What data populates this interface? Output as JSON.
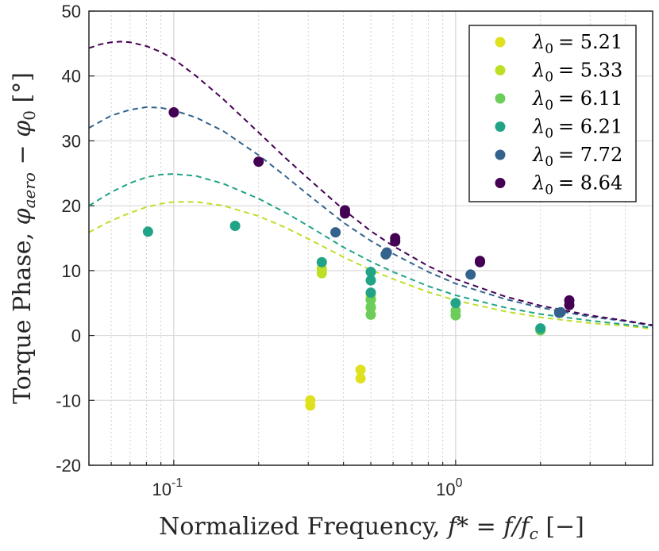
{
  "chart_data": {
    "type": "scatter",
    "xscale": "log",
    "xlim": [
      0.05,
      5
    ],
    "ylim": [
      -20,
      50
    ],
    "yticks": [
      50,
      40,
      30,
      20,
      10,
      0,
      -10,
      -20
    ],
    "ytick_labels": [
      "50",
      "40",
      "30",
      "20",
      "10",
      "0",
      "-10",
      "-20"
    ],
    "xticks": [
      {
        "value": 0.1,
        "base": "10",
        "exp": "-1"
      },
      {
        "value": 1,
        "base": "10",
        "exp": "0"
      }
    ],
    "xlabel": "Normalized Frequency, f* = f/f_c [−]",
    "xlabel_parts": {
      "prefix": "Normalized Frequency, ",
      "math": "f* = f/f",
      "sub": "c",
      "suffix": " [−]"
    },
    "ylabel": "Torque Phase, φ_aero − φ_0 [°]",
    "ylabel_parts": {
      "prefix": "Torque Phase, ",
      "phi1": "φ",
      "sub1": "aero",
      "minus": " − ",
      "phi2": "φ",
      "sub2": "0",
      "suffix": " [°]"
    },
    "grid": true,
    "legend_position": "top-right",
    "series": [
      {
        "name": "λ0 = 5.21",
        "symbol": "λ",
        "sub": "0",
        "value": "= 5.21",
        "color": "#dfe11f",
        "points": [
          [
            0.305,
            -10.8
          ],
          [
            0.305,
            -10.0
          ],
          [
            0.46,
            -6.6
          ],
          [
            0.46,
            -5.3
          ]
        ]
      },
      {
        "name": "λ0 = 5.33",
        "symbol": "λ",
        "sub": "0",
        "value": "= 5.33",
        "color": "#bddf26",
        "points": [
          [
            0.335,
            9.6
          ],
          [
            0.335,
            10.3
          ],
          [
            0.5,
            4.2
          ],
          [
            0.5,
            5.8
          ],
          [
            0.5,
            6.3
          ],
          [
            2.0,
            0.9
          ]
        ],
        "curve": [
          [
            0.05,
            15.9
          ],
          [
            0.06,
            17.7
          ],
          [
            0.07,
            18.9
          ],
          [
            0.08,
            19.8
          ],
          [
            0.09,
            20.3
          ],
          [
            0.1,
            20.6
          ],
          [
            0.12,
            20.6
          ],
          [
            0.15,
            20.0
          ],
          [
            0.2,
            18.4
          ],
          [
            0.25,
            16.6
          ],
          [
            0.3,
            14.9
          ],
          [
            0.4,
            12.1
          ],
          [
            0.5,
            10.1
          ],
          [
            0.6,
            8.7
          ],
          [
            0.8,
            6.7
          ],
          [
            1.0,
            5.4
          ],
          [
            1.5,
            3.7
          ],
          [
            2.0,
            2.8
          ],
          [
            3.0,
            1.9
          ],
          [
            4.0,
            1.5
          ],
          [
            5.0,
            1.0
          ]
        ]
      },
      {
        "name": "λ0 = 6.11",
        "symbol": "λ",
        "sub": "0",
        "value": "= 6.11",
        "color": "#6ccd5a",
        "points": [
          [
            0.5,
            3.2
          ],
          [
            0.5,
            4.4
          ],
          [
            0.5,
            5.5
          ],
          [
            1.0,
            3.1
          ],
          [
            1.0,
            3.8
          ],
          [
            2.0,
            0.8
          ]
        ]
      },
      {
        "name": "λ0 = 6.21",
        "symbol": "λ",
        "sub": "0",
        "value": "= 6.21",
        "color": "#20a386",
        "points": [
          [
            0.081,
            16.0
          ],
          [
            0.165,
            16.9
          ],
          [
            0.335,
            11.3
          ],
          [
            0.5,
            6.6
          ],
          [
            0.5,
            8.5
          ],
          [
            0.5,
            9.8
          ],
          [
            1.0,
            5.0
          ],
          [
            2.0,
            1.1
          ]
        ],
        "curve": [
          [
            0.05,
            20.0
          ],
          [
            0.06,
            22.1
          ],
          [
            0.07,
            23.5
          ],
          [
            0.08,
            24.4
          ],
          [
            0.09,
            24.8
          ],
          [
            0.1,
            24.9
          ],
          [
            0.12,
            24.6
          ],
          [
            0.15,
            23.4
          ],
          [
            0.2,
            21.1
          ],
          [
            0.25,
            18.9
          ],
          [
            0.3,
            16.9
          ],
          [
            0.4,
            13.6
          ],
          [
            0.5,
            11.4
          ],
          [
            0.6,
            9.8
          ],
          [
            0.8,
            7.6
          ],
          [
            1.0,
            6.2
          ],
          [
            1.5,
            4.3
          ],
          [
            2.0,
            3.3
          ],
          [
            3.0,
            2.3
          ],
          [
            4.0,
            1.7
          ],
          [
            5.0,
            1.2
          ]
        ]
      },
      {
        "name": "λ0 = 7.72",
        "symbol": "λ",
        "sub": "0",
        "value": "= 7.72",
        "color": "#33638d",
        "points": [
          [
            0.375,
            15.9
          ],
          [
            0.565,
            12.5
          ],
          [
            0.57,
            12.8
          ],
          [
            1.13,
            9.4
          ],
          [
            2.33,
            3.5
          ],
          [
            2.36,
            3.6
          ]
        ],
        "curve": [
          [
            0.05,
            32.0
          ],
          [
            0.06,
            33.9
          ],
          [
            0.07,
            34.8
          ],
          [
            0.08,
            35.2
          ],
          [
            0.09,
            35.1
          ],
          [
            0.1,
            34.7
          ],
          [
            0.12,
            33.6
          ],
          [
            0.15,
            31.5
          ],
          [
            0.2,
            27.8
          ],
          [
            0.25,
            24.5
          ],
          [
            0.3,
            21.7
          ],
          [
            0.4,
            17.4
          ],
          [
            0.5,
            14.6
          ],
          [
            0.6,
            12.6
          ],
          [
            0.8,
            9.8
          ],
          [
            1.0,
            8.0
          ],
          [
            1.5,
            5.6
          ],
          [
            2.0,
            4.3
          ],
          [
            3.0,
            2.9
          ],
          [
            4.0,
            2.2
          ],
          [
            5.0,
            1.5
          ]
        ]
      },
      {
        "name": "λ0 = 8.64",
        "symbol": "λ",
        "sub": "0",
        "value": "= 8.64",
        "color": "#440154",
        "points": [
          [
            0.1,
            34.4
          ],
          [
            0.2,
            26.8
          ],
          [
            0.405,
            18.8
          ],
          [
            0.405,
            19.3
          ],
          [
            0.61,
            14.5
          ],
          [
            0.61,
            15.0
          ],
          [
            1.22,
            11.3
          ],
          [
            1.22,
            11.5
          ],
          [
            2.53,
            4.7
          ],
          [
            2.53,
            5.4
          ]
        ],
        "curve": [
          [
            0.05,
            44.3
          ],
          [
            0.055,
            44.9
          ],
          [
            0.06,
            45.2
          ],
          [
            0.065,
            45.3
          ],
          [
            0.07,
            45.2
          ],
          [
            0.08,
            44.6
          ],
          [
            0.09,
            43.7
          ],
          [
            0.1,
            42.6
          ],
          [
            0.12,
            40.0
          ],
          [
            0.15,
            36.4
          ],
          [
            0.2,
            31.3
          ],
          [
            0.25,
            27.3
          ],
          [
            0.3,
            24.2
          ],
          [
            0.4,
            19.4
          ],
          [
            0.5,
            16.1
          ],
          [
            0.6,
            13.8
          ],
          [
            0.8,
            10.7
          ],
          [
            1.0,
            8.7
          ],
          [
            1.5,
            6.0
          ],
          [
            2.0,
            4.6
          ],
          [
            3.0,
            3.1
          ],
          [
            4.0,
            2.3
          ],
          [
            5.0,
            1.6
          ]
        ]
      }
    ]
  }
}
